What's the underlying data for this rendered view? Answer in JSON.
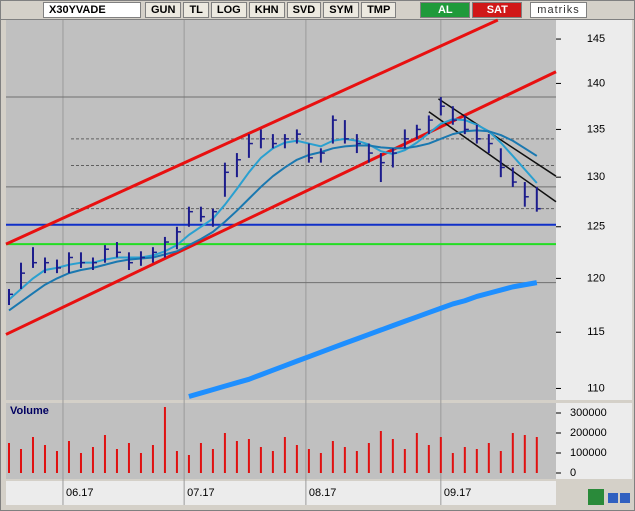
{
  "toolbar": {
    "symbol": "X30YVADE",
    "buttons": [
      "GUN",
      "TL",
      "LOG",
      "KHN",
      "SVD",
      "SYM",
      "TMP"
    ],
    "buy": "AL",
    "sell": "SAT",
    "brand": "matriks"
  },
  "chart_data": [
    {
      "type": "ohlc",
      "log_scale": true,
      "color": "#1c1c8c",
      "ylim": [
        109,
        147.2
      ],
      "yticks": [
        110,
        115,
        120,
        125,
        130,
        135,
        140,
        145
      ],
      "xlim": [
        -0.25,
        45.6
      ],
      "xticks": [
        {
          "value": 4.5,
          "label": "06.17"
        },
        {
          "value": 14.6,
          "label": "07.17"
        },
        {
          "value": 24.75,
          "label": "08.17"
        },
        {
          "value": 36,
          "label": "09.17"
        }
      ],
      "high": [
        119,
        121.5,
        123,
        122,
        121.8,
        122.5,
        122.5,
        122,
        123.2,
        123.5,
        122.5,
        122.6,
        123,
        124,
        125,
        127,
        127,
        126.8,
        131.5,
        132.5,
        134.5,
        135,
        134.5,
        134.5,
        135,
        133.5,
        133,
        136.5,
        136,
        134.5,
        133.5,
        132.5,
        133,
        135,
        135.5,
        136.5,
        138.5,
        137.5,
        136.5,
        135.5,
        134.5,
        133,
        131,
        129.5,
        129
      ],
      "low": [
        117.5,
        119,
        121,
        120.5,
        120.5,
        120.5,
        121,
        120.8,
        121.5,
        122,
        120.8,
        121.2,
        121.5,
        122,
        122.8,
        125,
        125.5,
        125,
        128,
        130,
        132,
        133,
        133,
        133,
        133.5,
        131.5,
        131.5,
        133.5,
        133.5,
        132.5,
        131.5,
        129.5,
        131,
        133,
        134,
        134.5,
        136.5,
        135.5,
        134.5,
        133.5,
        132.5,
        130,
        129,
        127,
        126.5
      ],
      "close": [
        118.5,
        120.5,
        121.5,
        121.5,
        121,
        122,
        121.5,
        121.5,
        122.8,
        122.5,
        121.5,
        122,
        122.5,
        123.5,
        124.5,
        126.5,
        126,
        126.5,
        130.5,
        131.8,
        133.5,
        134,
        133.5,
        134,
        134.5,
        132,
        132.5,
        136,
        134,
        133.5,
        132.5,
        131.5,
        132.5,
        134,
        135,
        136,
        137.5,
        136,
        135,
        134,
        133.5,
        131,
        129.5,
        128,
        126.8
      ],
      "moving_averages": [
        {
          "color": "#2aa0d0",
          "width": 2,
          "values": [
            118,
            119,
            120,
            120.8,
            121,
            121.3,
            121.5,
            121.5,
            121.8,
            122,
            122,
            122,
            122.2,
            122.6,
            123.2,
            124.2,
            125,
            125.8,
            127.2,
            128.8,
            130.5,
            132,
            133,
            133.6,
            133.8,
            133.5,
            133.2,
            133.8,
            134,
            133.8,
            133.4,
            132.7,
            132.4,
            132.8,
            133.6,
            134.6,
            135.6,
            136.1,
            136,
            135.5,
            134.8,
            133.6,
            132.2,
            130.8,
            129.4
          ]
        },
        {
          "color": "#1a78b0",
          "width": 2,
          "values": [
            117,
            117.8,
            118.6,
            119.4,
            120,
            120.5,
            120.8,
            121,
            121.3,
            121.6,
            121.8,
            121.9,
            122,
            122.3,
            122.6,
            123.2,
            123.8,
            124.5,
            125.5,
            126.6,
            127.8,
            129,
            130.1,
            131,
            131.8,
            132.3,
            132.6,
            133,
            133.2,
            133.3,
            133.3,
            133.1,
            133,
            133,
            133.2,
            133.5,
            134,
            134.5,
            134.8,
            134.9,
            134.8,
            134.4,
            133.8,
            133,
            132.2
          ]
        },
        {
          "color": "#1e8fff",
          "width": 5,
          "values": [
            null,
            null,
            null,
            null,
            null,
            null,
            null,
            null,
            null,
            null,
            null,
            null,
            null,
            null,
            null,
            109.3,
            109.6,
            109.9,
            110.2,
            110.5,
            110.8,
            111.2,
            111.6,
            112,
            112.4,
            112.8,
            113.2,
            113.6,
            114,
            114.4,
            114.8,
            115.2,
            115.6,
            116,
            116.4,
            116.8,
            117.2,
            117.6,
            117.9,
            118.3,
            118.6,
            118.9,
            119.2,
            119.4,
            119.6
          ]
        }
      ],
      "hlines": [
        {
          "value": 138.5,
          "color": "#707070",
          "dashed": false
        },
        {
          "value": 134,
          "color": "#606060",
          "dashed": true
        },
        {
          "value": 131.2,
          "color": "#606060",
          "dashed": true
        },
        {
          "value": 129,
          "color": "#707070",
          "dashed": false
        },
        {
          "value": 126.8,
          "color": "#606060",
          "dashed": true
        },
        {
          "value": 125.2,
          "color": "#1030c8",
          "dashed": false
        },
        {
          "value": 123.3,
          "color": "#22dd22",
          "dashed": false
        },
        {
          "value": 119.6,
          "color": "#707070",
          "dashed": false
        }
      ],
      "trendlines": [
        {
          "color": "#e81010",
          "from": [
            -0.25,
            123.3
          ],
          "to": [
            40.75,
            147.2
          ]
        },
        {
          "color": "#e81010",
          "from": [
            -0.25,
            114.8
          ],
          "to": [
            45.6,
            141.3
          ]
        },
        {
          "color": "#101010",
          "from": [
            35.8,
            138.3
          ],
          "to": [
            45.6,
            130.1
          ]
        },
        {
          "color": "#101010",
          "from": [
            35,
            136.9
          ],
          "to": [
            45.6,
            127.5
          ]
        }
      ]
    },
    {
      "type": "bar",
      "title": "Volume",
      "color": "#e01010",
      "ylim": [
        0,
        350000
      ],
      "yticks": [
        0,
        100000,
        200000,
        300000
      ],
      "values": [
        150000,
        120000,
        180000,
        140000,
        110000,
        160000,
        100000,
        130000,
        190000,
        120000,
        150000,
        100000,
        140000,
        330000,
        110000,
        90000,
        150000,
        120000,
        200000,
        160000,
        170000,
        130000,
        110000,
        180000,
        140000,
        120000,
        100000,
        160000,
        130000,
        110000,
        150000,
        210000,
        170000,
        120000,
        200000,
        140000,
        180000,
        100000,
        130000,
        120000,
        150000,
        110000,
        200000,
        190000,
        180000
      ]
    }
  ]
}
